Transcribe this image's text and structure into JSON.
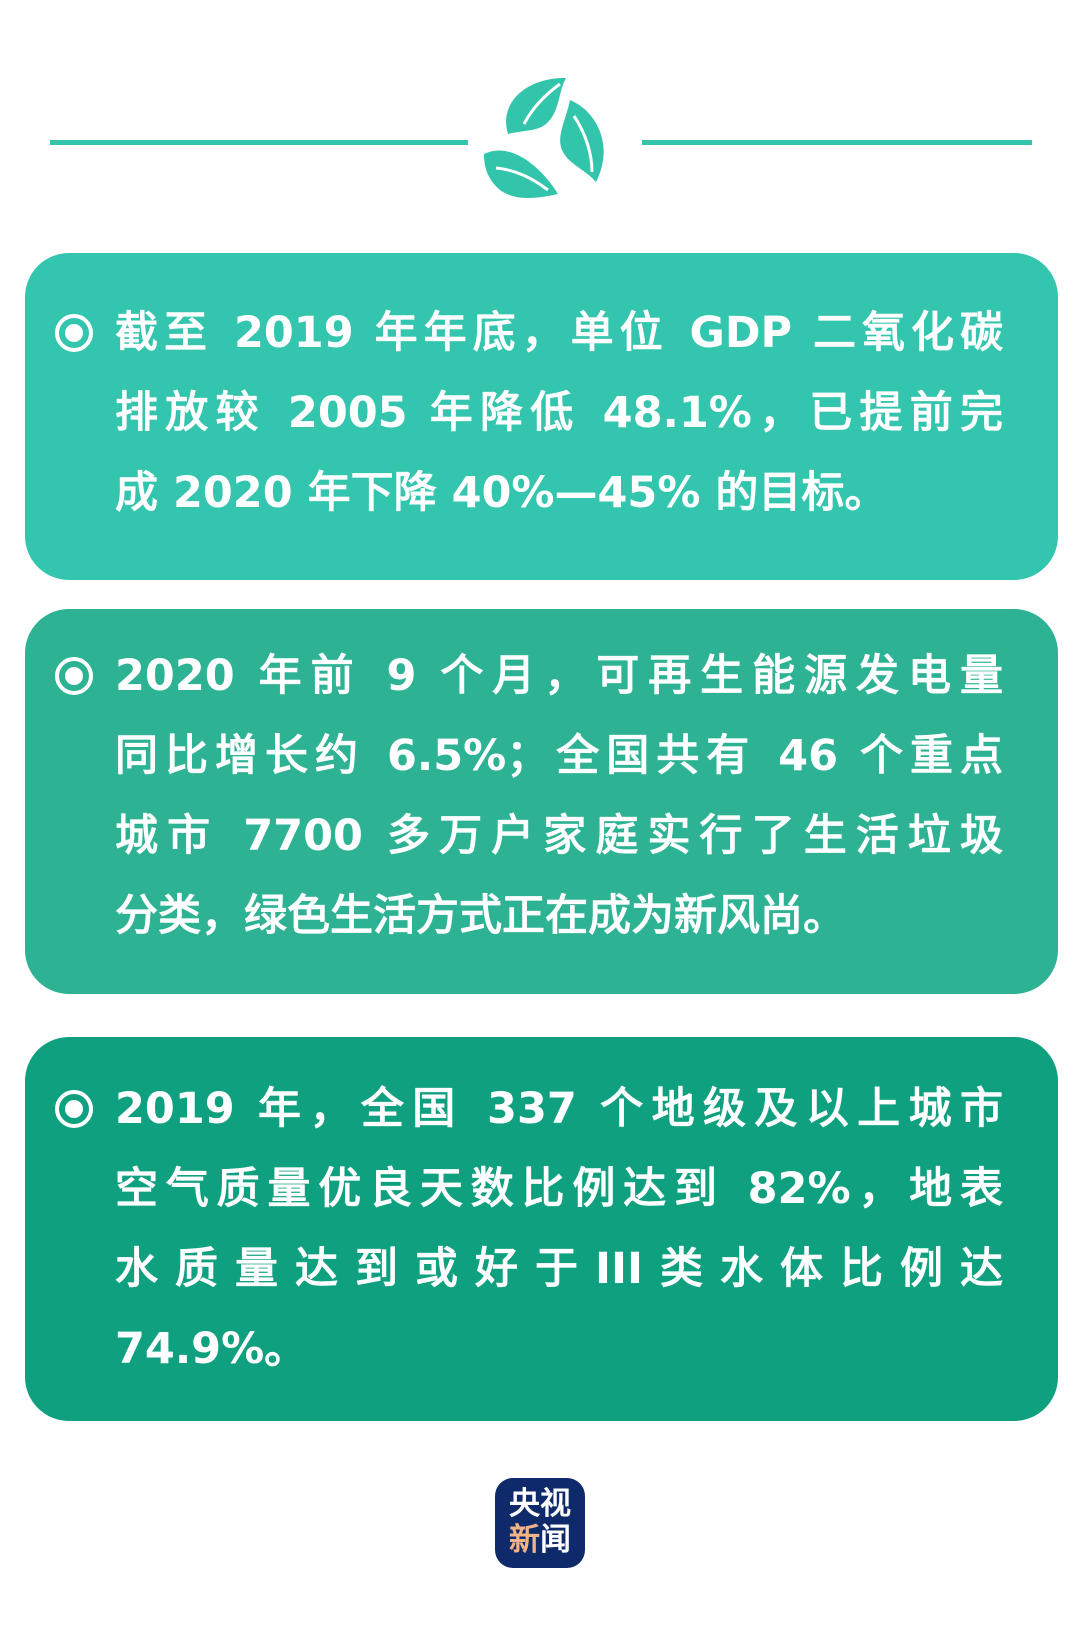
{
  "colors": {
    "accent": "#33c4ac",
    "card1": "#33c5ae",
    "card2": "#2db394",
    "card3": "#0fa07f",
    "badge": "#0f2a6b"
  },
  "header": {
    "icon": "recycle-leaves-icon"
  },
  "cards": [
    {
      "lines": [
        "截至 2019 年年底，单位 GDP 二氧化碳",
        "排放较 2005 年降低 48.1%，已提前完",
        "成 2020 年下降 40%—45% 的目标。"
      ]
    },
    {
      "lines": [
        "2020 年前 9 个月，可再生能源发电量",
        "同比增长约 6.5%；全国共有 46 个重点",
        "城市 7700 多万户家庭实行了生活垃圾",
        "分类，绿色生活方式正在成为新风尚。"
      ]
    },
    {
      "lines": [
        "2019 年，全国 337 个地级及以上城市",
        "空气质量优良天数比例达到 82%，地表",
        "水质量达到或好于III类水体比例达",
        "74.9%。"
      ]
    }
  ],
  "footer": {
    "logo_top": "央视",
    "logo_bottom_left": "新",
    "logo_bottom_right": "闻"
  }
}
